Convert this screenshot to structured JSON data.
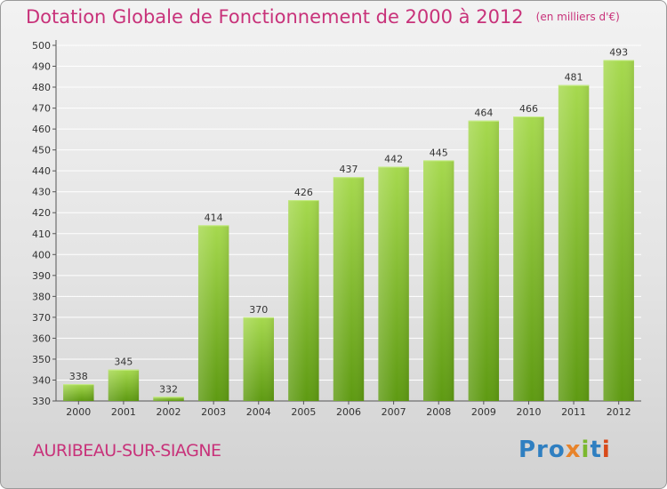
{
  "header": {
    "title": "Dotation Globale de Fonctionnement de 2000 à 2012",
    "unit": "(en milliers d'€)"
  },
  "footer": {
    "commune": "AURIBEAU-SUR-SIAGNE",
    "logo": [
      "Pro",
      "x",
      "i",
      "t",
      "i"
    ]
  },
  "colors": {
    "title": "#c8327a",
    "bar_light": "#a6d94e",
    "bar_dark": "#5e9a12",
    "logo_blue": "#2f7fc1",
    "logo_orange": "#e8832a",
    "logo_green": "#7bb82e",
    "logo_red": "#d84a1a"
  },
  "chart_data": {
    "type": "bar",
    "title": "Dotation Globale de Fonctionnement de 2000 à 2012",
    "subtitle": "(en milliers d'€)",
    "xlabel": "",
    "ylabel": "",
    "categories": [
      "2000",
      "2001",
      "2002",
      "2003",
      "2004",
      "2005",
      "2006",
      "2007",
      "2008",
      "2009",
      "2010",
      "2011",
      "2012"
    ],
    "values": [
      338,
      345,
      332,
      414,
      370,
      426,
      437,
      442,
      445,
      464,
      466,
      481,
      493
    ],
    "ylim": [
      330,
      500
    ],
    "yticks": [
      330,
      340,
      350,
      360,
      370,
      380,
      390,
      400,
      410,
      420,
      430,
      440,
      450,
      460,
      470,
      480,
      490,
      500
    ],
    "grid": true,
    "legend": "none"
  }
}
